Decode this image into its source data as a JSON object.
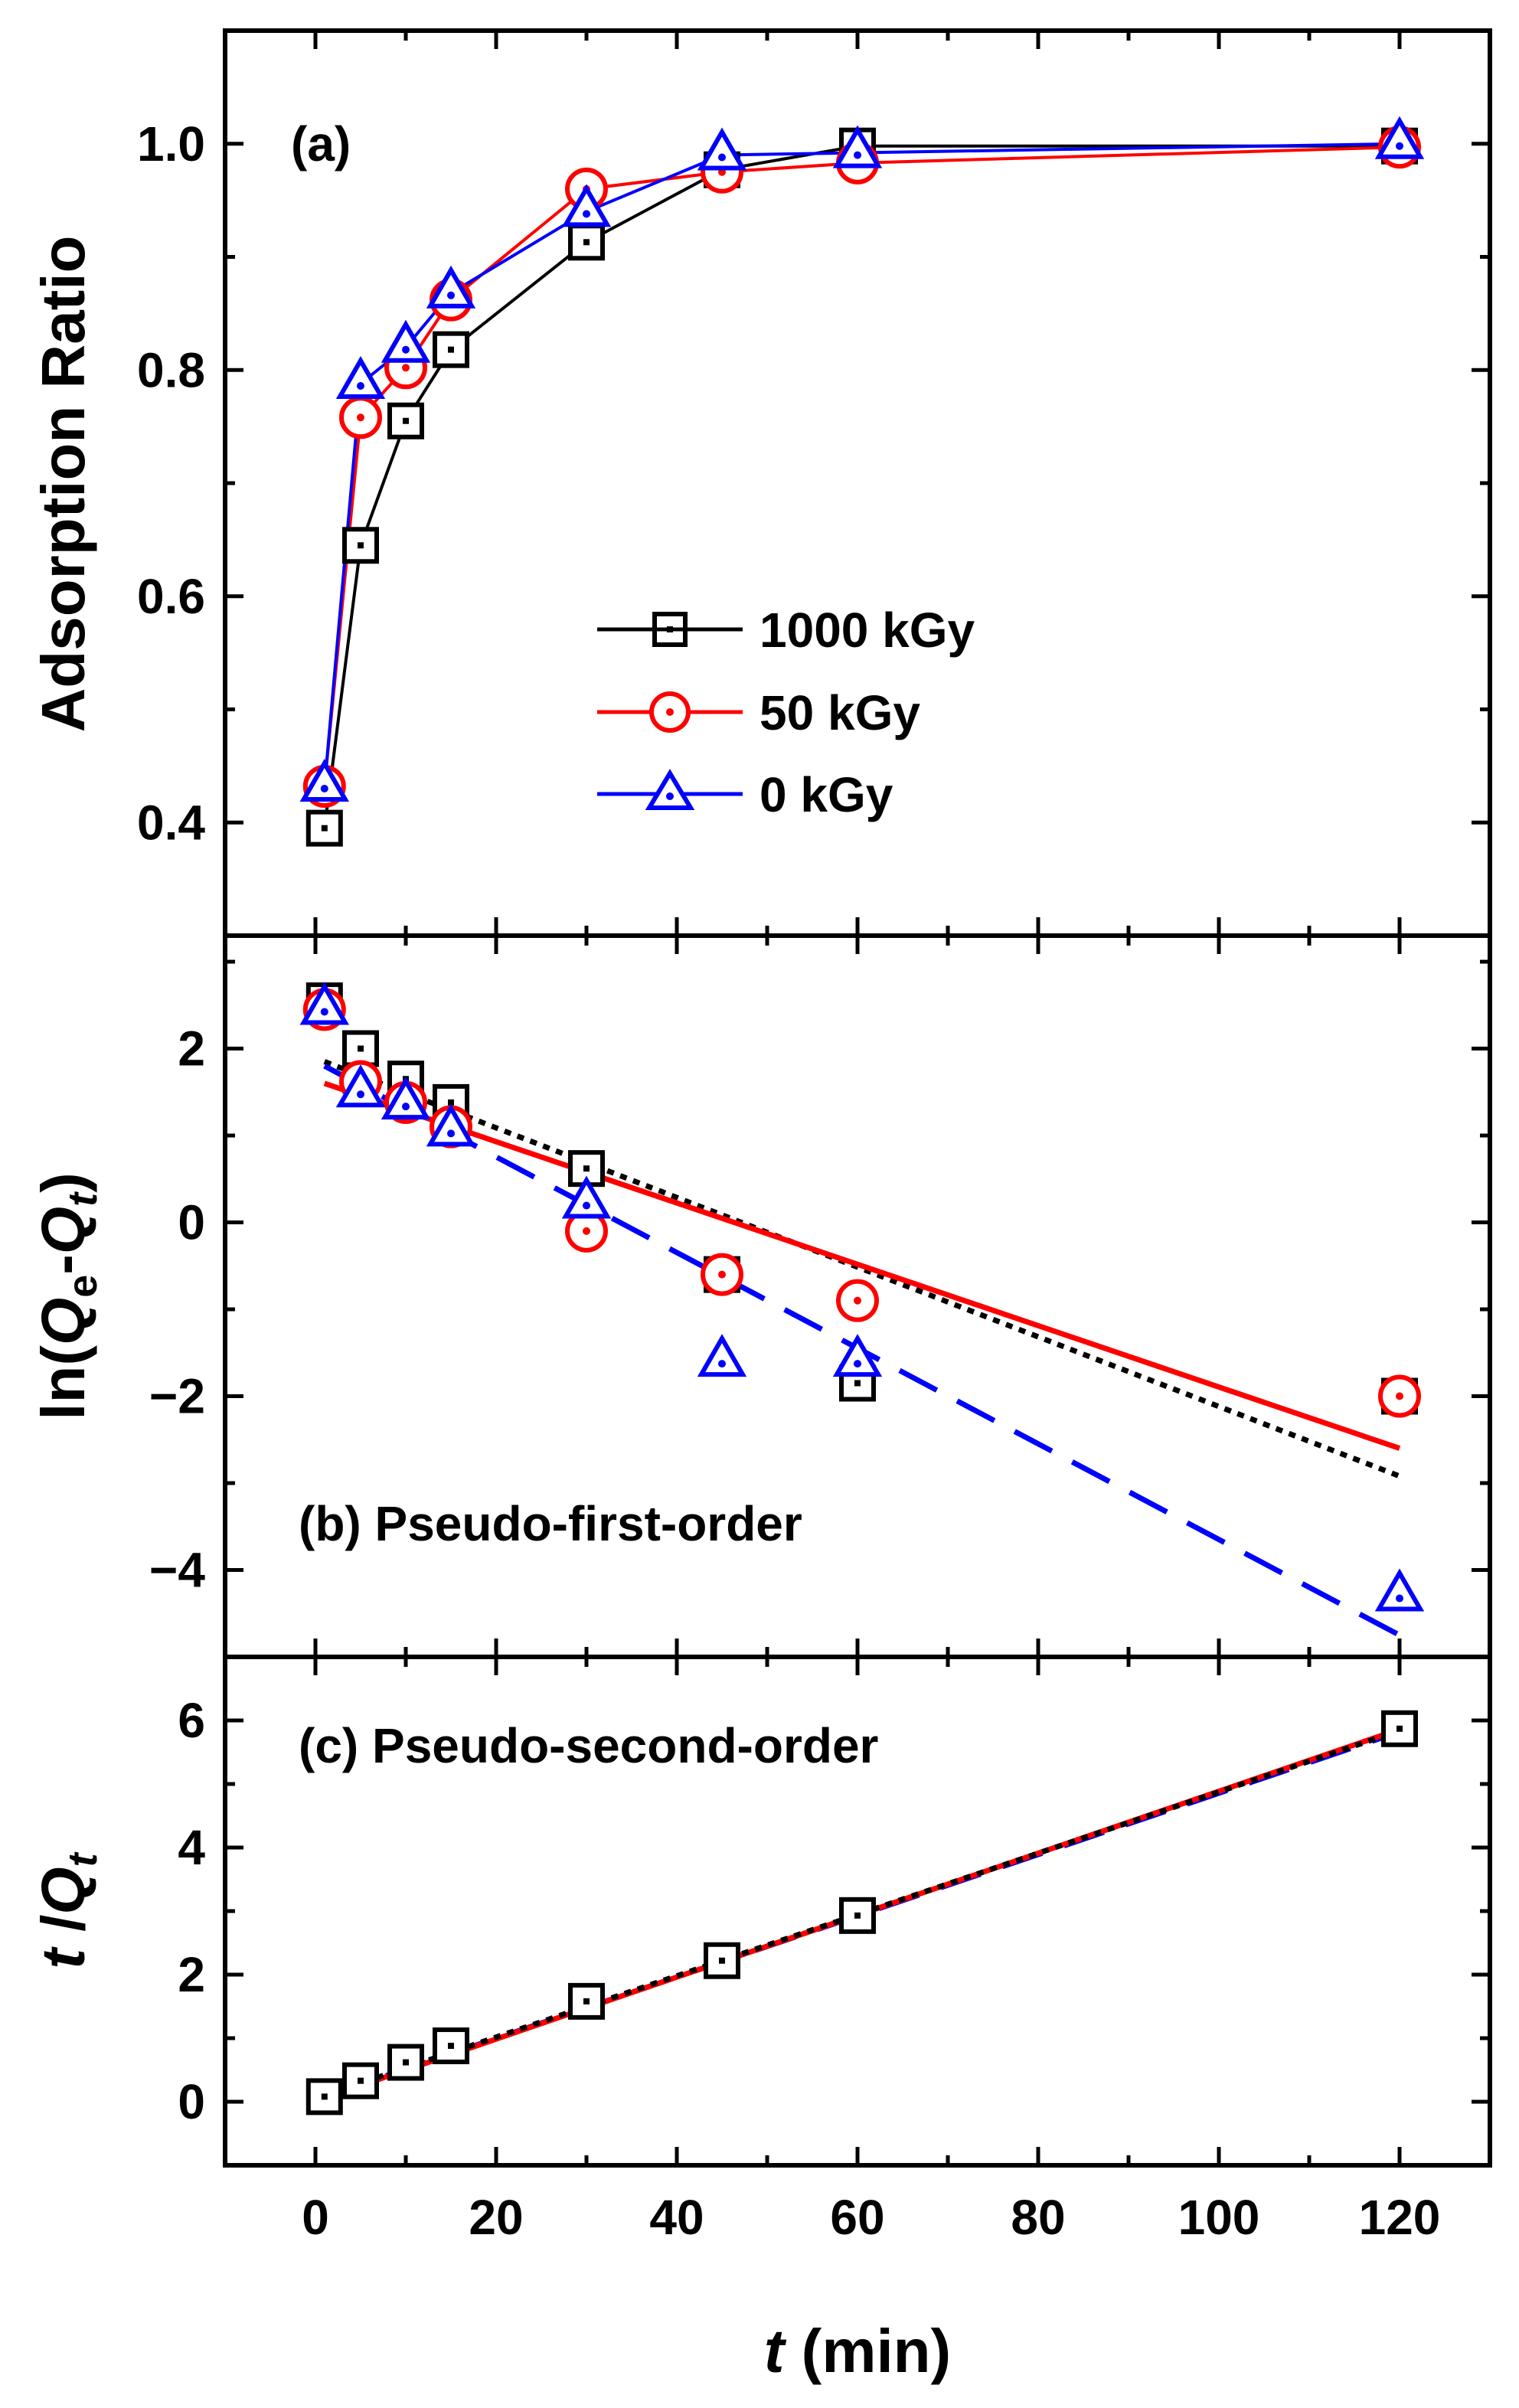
{
  "colors": {
    "s1000": "#000000",
    "s50": "#ff0000",
    "s0": "#0000ff"
  },
  "chart_data": [
    {
      "type": "line",
      "panel": "a",
      "title": "(a)",
      "xlabel": "",
      "ylabel": "Adsorption Ratio",
      "xlim": [
        -10,
        130
      ],
      "ylim": [
        0.3,
        1.1
      ],
      "yticks": [
        0.4,
        0.6,
        0.8,
        1.0
      ],
      "ytick_labels": [
        "0.4",
        "0.6",
        "0.8",
        "1.0"
      ],
      "legend": {
        "placement": "center-right",
        "entries": [
          "1000 kGy",
          "50 kGy",
          "0 kGy"
        ]
      },
      "series": [
        {
          "name": "1000 kGy",
          "color_key": "s1000",
          "marker": "square",
          "x": [
            1,
            5,
            10,
            15,
            30,
            45,
            60,
            120
          ],
          "y": [
            0.395,
            0.645,
            0.755,
            0.818,
            0.913,
            0.977,
            0.998,
            0.998
          ]
        },
        {
          "name": "50 kGy",
          "color_key": "s50",
          "marker": "circle",
          "x": [
            1,
            5,
            10,
            15,
            30,
            45,
            60,
            120
          ],
          "y": [
            0.432,
            0.758,
            0.802,
            0.862,
            0.96,
            0.975,
            0.983,
            0.997
          ]
        },
        {
          "name": "0 kGy",
          "color_key": "s0",
          "marker": "triangle",
          "x": [
            1,
            5,
            10,
            15,
            30,
            45,
            60,
            120
          ],
          "y": [
            0.432,
            0.788,
            0.82,
            0.868,
            0.94,
            0.99,
            0.992,
            1.0
          ]
        }
      ]
    },
    {
      "type": "scatter",
      "panel": "b",
      "title": "(b) Pseudo-first-order",
      "xlabel": "",
      "ylabel": "ln(Qe-Qt)",
      "xlim": [
        -10,
        130
      ],
      "ylim": [
        -5.0,
        3.3
      ],
      "yticks": [
        -4,
        -2,
        0,
        2
      ],
      "ytick_labels": [
        "−4",
        "−2",
        "0",
        "2"
      ],
      "series": [
        {
          "name": "1000 kGy",
          "color_key": "s1000",
          "marker": "square",
          "x": [
            1,
            5,
            10,
            15,
            30,
            45,
            60,
            120
          ],
          "y": [
            2.55,
            2.0,
            1.65,
            1.38,
            0.62,
            -0.6,
            -1.85,
            -2.0
          ]
        },
        {
          "name": "50 kGy",
          "color_key": "s50",
          "marker": "circle",
          "x": [
            1,
            5,
            10,
            15,
            30,
            45,
            60,
            120
          ],
          "y": [
            2.45,
            1.62,
            1.38,
            1.1,
            -0.1,
            -0.6,
            -0.9,
            -2.0
          ]
        },
        {
          "name": "0 kGy",
          "color_key": "s0",
          "marker": "triangle",
          "x": [
            1,
            5,
            10,
            15,
            30,
            45,
            60,
            120
          ],
          "y": [
            2.45,
            1.5,
            1.36,
            1.05,
            0.22,
            -1.6,
            -1.6,
            -4.3
          ]
        }
      ],
      "fits": [
        {
          "name": "1000 kGy fit",
          "color_key": "s1000",
          "style": "dotted",
          "x": [
            1,
            120
          ],
          "y": [
            1.85,
            -2.92
          ]
        },
        {
          "name": "50 kGy fit",
          "color_key": "s50",
          "style": "solid",
          "x": [
            1,
            120
          ],
          "y": [
            1.6,
            -2.6
          ]
        },
        {
          "name": "0 kGy fit",
          "color_key": "s0",
          "style": "dashed",
          "x": [
            1,
            120
          ],
          "y": [
            1.8,
            -4.75
          ]
        }
      ]
    },
    {
      "type": "scatter",
      "panel": "c",
      "title": "(c) Pseudo-second-order",
      "xlabel": "t (min)",
      "ylabel": "t /Qt",
      "xlim": [
        -10,
        130
      ],
      "ylim": [
        -1.0,
        7.0
      ],
      "xticks": [
        0,
        20,
        40,
        60,
        80,
        100,
        120
      ],
      "xtick_labels": [
        "0",
        "20",
        "40",
        "60",
        "80",
        "100",
        "120"
      ],
      "yticks": [
        0,
        2,
        4,
        6
      ],
      "ytick_labels": [
        "0",
        "2",
        "4",
        "6"
      ],
      "series": [
        {
          "name": "1000 kGy",
          "color_key": "s1000",
          "marker": "square",
          "x": [
            1,
            5,
            10,
            15,
            30,
            45,
            60,
            120
          ],
          "y": [
            0.08,
            0.33,
            0.62,
            0.88,
            1.58,
            2.22,
            2.93,
            5.87
          ]
        }
      ],
      "fits": [
        {
          "name": "0 kGy fit",
          "color_key": "s0",
          "style": "dashed",
          "x": [
            1,
            120
          ],
          "y": [
            0.08,
            5.82
          ]
        },
        {
          "name": "50 kGy fit",
          "color_key": "s50",
          "style": "solid",
          "x": [
            1,
            120
          ],
          "y": [
            0.06,
            5.86
          ]
        },
        {
          "name": "1000 kGy fit",
          "color_key": "s1000",
          "style": "dotted",
          "x": [
            1,
            120
          ],
          "y": [
            0.1,
            5.84
          ]
        }
      ]
    }
  ]
}
